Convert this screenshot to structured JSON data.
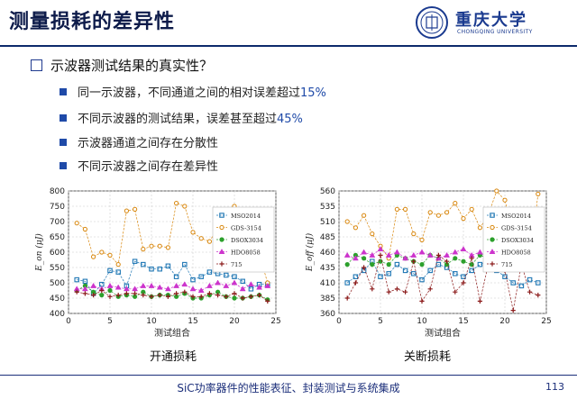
{
  "header": {
    "title": "测量损耗的差异性"
  },
  "logo": {
    "name": "重庆大学",
    "name_en": "CHONGQING UNIVERSITY"
  },
  "question": "示波器测试结果的真实性？",
  "bullets": [
    {
      "text": "同一示波器，不同通道之间的相对误差超过",
      "highlight": "15%"
    },
    {
      "text": "不同示波器的测试结果，误差甚至超过",
      "highlight": "45%"
    },
    {
      "text": "示波器通道之间存在分散性",
      "highlight": ""
    },
    {
      "text": "不同示波器之间存在差异性",
      "highlight": ""
    }
  ],
  "colors": {
    "MSO2014": "#1f77b4",
    "GDS-3154": "#d8860b",
    "DSOX3034": "#2ca02c",
    "HDO8058": "#cc33cc",
    "715": "#8b1a1a"
  },
  "chart_data": [
    {
      "type": "line",
      "caption": "开通损耗",
      "xlabel": "测试组合",
      "ylabel": "E_on (μJ)",
      "xlim": [
        0,
        25
      ],
      "ylim": [
        400,
        800
      ],
      "xticks": [
        0,
        5,
        10,
        15,
        20,
        25
      ],
      "yticks": [
        400,
        450,
        500,
        550,
        600,
        650,
        700,
        750,
        800
      ],
      "grid": true,
      "legend_position": "right",
      "x": [
        1,
        2,
        3,
        4,
        5,
        6,
        7,
        8,
        9,
        10,
        11,
        12,
        13,
        14,
        15,
        16,
        17,
        18,
        19,
        20,
        21,
        22,
        23,
        24
      ],
      "series": [
        {
          "name": "MSO2014",
          "marker": "square",
          "values": [
            510,
            505,
            465,
            495,
            540,
            535,
            490,
            570,
            560,
            545,
            545,
            555,
            520,
            560,
            510,
            520,
            535,
            530,
            525,
            520,
            505,
            480,
            495,
            495
          ]
        },
        {
          "name": "GDS-3154",
          "marker": "circle",
          "values": [
            695,
            675,
            585,
            600,
            590,
            560,
            735,
            740,
            610,
            620,
            620,
            615,
            760,
            750,
            665,
            645,
            635,
            680,
            700,
            750,
            665,
            595,
            595,
            500
          ]
        },
        {
          "name": "DSOX3034",
          "marker": "circle",
          "values": [
            475,
            490,
            470,
            460,
            475,
            455,
            460,
            455,
            470,
            455,
            460,
            460,
            455,
            465,
            450,
            450,
            460,
            470,
            455,
            450,
            450,
            455,
            460,
            445
          ]
        },
        {
          "name": "HDO8058",
          "marker": "triangle",
          "values": [
            480,
            480,
            490,
            480,
            490,
            485,
            480,
            480,
            490,
            490,
            485,
            480,
            490,
            495,
            480,
            475,
            490,
            500,
            490,
            500,
            480,
            495,
            485,
            490
          ]
        },
        {
          "name": "715",
          "marker": "plus",
          "values": [
            470,
            465,
            460,
            475,
            455,
            460,
            465,
            465,
            460,
            455,
            460,
            455,
            465,
            470,
            455,
            455,
            465,
            460,
            455,
            465,
            450,
            455,
            460,
            440
          ]
        }
      ]
    },
    {
      "type": "line",
      "caption": "关断损耗",
      "xlabel": "测试组合",
      "ylabel": "E_off (μJ)",
      "xlim": [
        0,
        25
      ],
      "ylim": [
        360,
        560
      ],
      "xticks": [
        0,
        5,
        10,
        15,
        20,
        25
      ],
      "yticks": [
        360,
        385,
        410,
        435,
        460,
        485,
        510,
        535,
        560
      ],
      "grid": true,
      "legend_position": "right",
      "x": [
        1,
        2,
        3,
        4,
        5,
        6,
        7,
        8,
        9,
        10,
        11,
        12,
        13,
        14,
        15,
        16,
        17,
        18,
        19,
        20,
        21,
        22,
        23,
        24
      ],
      "series": [
        {
          "name": "MSO2014",
          "marker": "square",
          "values": [
            410,
            420,
            430,
            445,
            420,
            425,
            440,
            430,
            425,
            415,
            430,
            440,
            435,
            425,
            420,
            430,
            440,
            445,
            430,
            420,
            410,
            405,
            415,
            410
          ]
        },
        {
          "name": "GDS-3154",
          "marker": "circle",
          "values": [
            510,
            500,
            520,
            490,
            470,
            450,
            530,
            530,
            490,
            480,
            525,
            520,
            525,
            540,
            515,
            530,
            500,
            520,
            560,
            545,
            490,
            480,
            445,
            555
          ]
        },
        {
          "name": "DSOX3034",
          "marker": "circle",
          "values": [
            440,
            455,
            450,
            440,
            445,
            440,
            455,
            450,
            445,
            440,
            455,
            450,
            440,
            450,
            445,
            440,
            455,
            450,
            445,
            440,
            450,
            445,
            450,
            455
          ]
        },
        {
          "name": "HDO8058",
          "marker": "triangle",
          "values": [
            455,
            450,
            460,
            455,
            465,
            455,
            460,
            450,
            455,
            460,
            455,
            450,
            455,
            460,
            465,
            455,
            460,
            450,
            455,
            460,
            465,
            455,
            460,
            455
          ]
        },
        {
          "name": "715",
          "marker": "plus",
          "values": [
            385,
            410,
            435,
            400,
            455,
            395,
            400,
            395,
            445,
            380,
            400,
            455,
            445,
            395,
            410,
            450,
            380,
            440,
            460,
            430,
            365,
            440,
            395,
            390
          ]
        }
      ]
    }
  ],
  "footer": {
    "text": "SiC功率器件的性能表征、封装测试与系统集成",
    "page": "113"
  }
}
